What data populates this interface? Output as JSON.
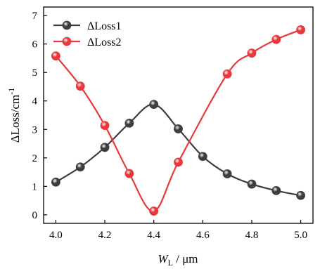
{
  "chart_data": {
    "type": "line",
    "xlabel": {
      "main": "W",
      "sub": "L",
      "rest": " / μm"
    },
    "ylabel": {
      "main": "ΔLoss/cm",
      "sup": "-1"
    },
    "xlim": [
      3.95,
      5.05
    ],
    "ylim": [
      -0.3,
      7.3
    ],
    "x_ticks": [
      "4.0",
      "4.2",
      "4.4",
      "4.6",
      "4.8",
      "5.0"
    ],
    "y_ticks": [
      "0",
      "1",
      "2",
      "3",
      "4",
      "5",
      "6",
      "7"
    ],
    "legend_position": "top-left",
    "grid": false,
    "series": [
      {
        "name": "ΔLoss1",
        "color": "#3d3d3d",
        "x": [
          4.0,
          4.1,
          4.2,
          4.3,
          4.4,
          4.5,
          4.6,
          4.7,
          4.8,
          4.9,
          5.0
        ],
        "y": [
          1.15,
          1.68,
          2.37,
          3.22,
          3.88,
          3.02,
          2.05,
          1.44,
          1.08,
          0.85,
          0.68
        ]
      },
      {
        "name": "ΔLoss2",
        "color": "#e8383b",
        "x": [
          4.0,
          4.1,
          4.2,
          4.3,
          4.4,
          4.5,
          4.7,
          4.8,
          4.9,
          5.0
        ],
        "y": [
          5.58,
          4.52,
          3.14,
          1.45,
          0.13,
          1.85,
          4.95,
          5.68,
          6.16,
          6.5
        ]
      }
    ]
  }
}
